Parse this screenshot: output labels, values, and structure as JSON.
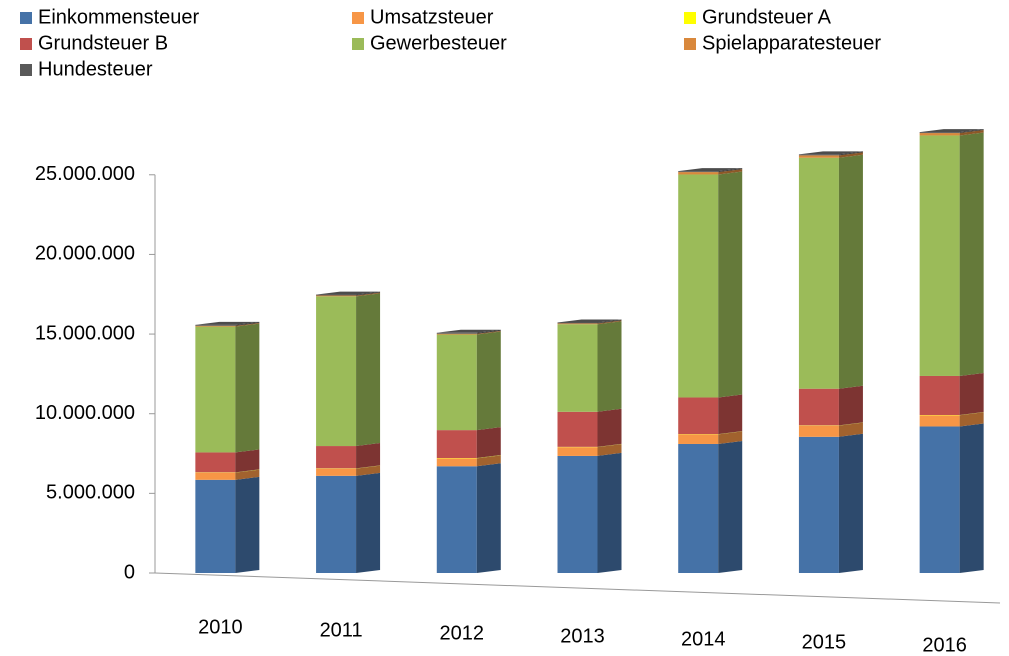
{
  "chart_data": {
    "type": "bar3d_stacked",
    "categories": [
      "2010",
      "2011",
      "2012",
      "2013",
      "2014",
      "2015",
      "2016"
    ],
    "series": [
      {
        "name": "Einkommensteuer",
        "color": "#4572a7",
        "values": [
          5850000,
          6100000,
          6700000,
          7350000,
          8100000,
          8550000,
          9200000
        ]
      },
      {
        "name": "Umsatzsteuer",
        "color": "#f79646",
        "values": [
          450000,
          450000,
          500000,
          550000,
          600000,
          700000,
          700000
        ]
      },
      {
        "name": "Grundsteuer A",
        "color": "#ffff00",
        "values": [
          20000,
          20000,
          20000,
          20000,
          20000,
          20000,
          20000
        ]
      },
      {
        "name": "Grundsteuer B",
        "color": "#c0504d",
        "values": [
          1250000,
          1400000,
          1750000,
          2200000,
          2300000,
          2300000,
          2450000
        ]
      },
      {
        "name": "Gewerbesteuer",
        "color": "#9bbb59",
        "values": [
          7900000,
          9400000,
          6000000,
          5500000,
          14000000,
          14500000,
          15100000
        ]
      },
      {
        "name": "Spielapparatesteuer",
        "color": "#d9883c",
        "values": [
          50000,
          50000,
          50000,
          50000,
          150000,
          150000,
          150000
        ]
      },
      {
        "name": "Hundesteuer",
        "color": "#595959",
        "values": [
          60000,
          60000,
          60000,
          60000,
          60000,
          60000,
          60000
        ]
      }
    ],
    "ylim": [
      0,
      28000000
    ],
    "yticks": [
      0,
      {
        "value": 5000000,
        "label": "5.000.000"
      },
      {
        "value": 10000000,
        "label": "10.000.000"
      },
      {
        "value": 15000000,
        "label": "15.000.000"
      },
      {
        "value": 20000000,
        "label": "20.000.000"
      },
      {
        "value": 25000000,
        "label": "25.000.000"
      }
    ]
  }
}
